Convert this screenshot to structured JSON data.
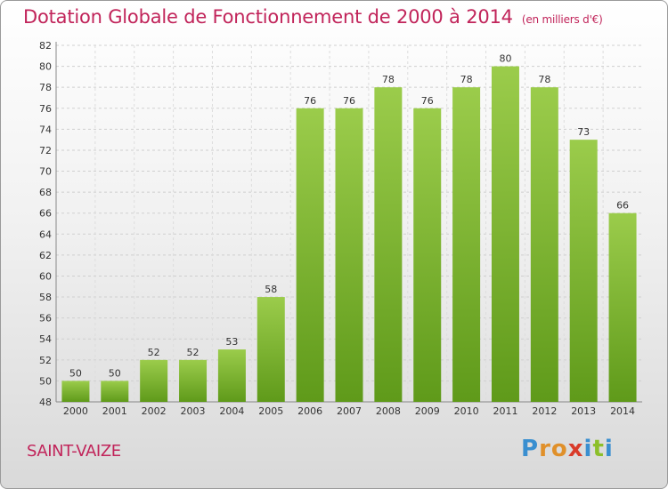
{
  "title": "Dotation Globale de Fonctionnement de 2000 à 2014",
  "unit": "(en milliers d'€)",
  "commune": "SAINT-VAIZE",
  "logo": {
    "p": "P",
    "r": "r",
    "o": "o",
    "x": "x",
    "i1": "i",
    "t": "t",
    "i2": "i"
  },
  "colors": {
    "title": "#c1245a",
    "bar_top": "#9bcc4b",
    "bar_bottom": "#5f9a1a"
  },
  "chart_data": {
    "type": "bar",
    "title": "Dotation Globale de Fonctionnement de 2000 à 2014",
    "unit": "(en milliers d'€)",
    "categories": [
      "2000",
      "2001",
      "2002",
      "2003",
      "2004",
      "2005",
      "2006",
      "2007",
      "2008",
      "2009",
      "2010",
      "2011",
      "2012",
      "2013",
      "2014"
    ],
    "values": [
      50,
      50,
      52,
      52,
      53,
      58,
      76,
      76,
      78,
      76,
      78,
      80,
      78,
      73,
      66
    ],
    "ylim": [
      48,
      82
    ],
    "yticks": [
      48,
      50,
      52,
      54,
      56,
      58,
      60,
      62,
      64,
      66,
      68,
      70,
      72,
      74,
      76,
      78,
      80,
      82
    ],
    "grid": true,
    "legend": "none"
  }
}
